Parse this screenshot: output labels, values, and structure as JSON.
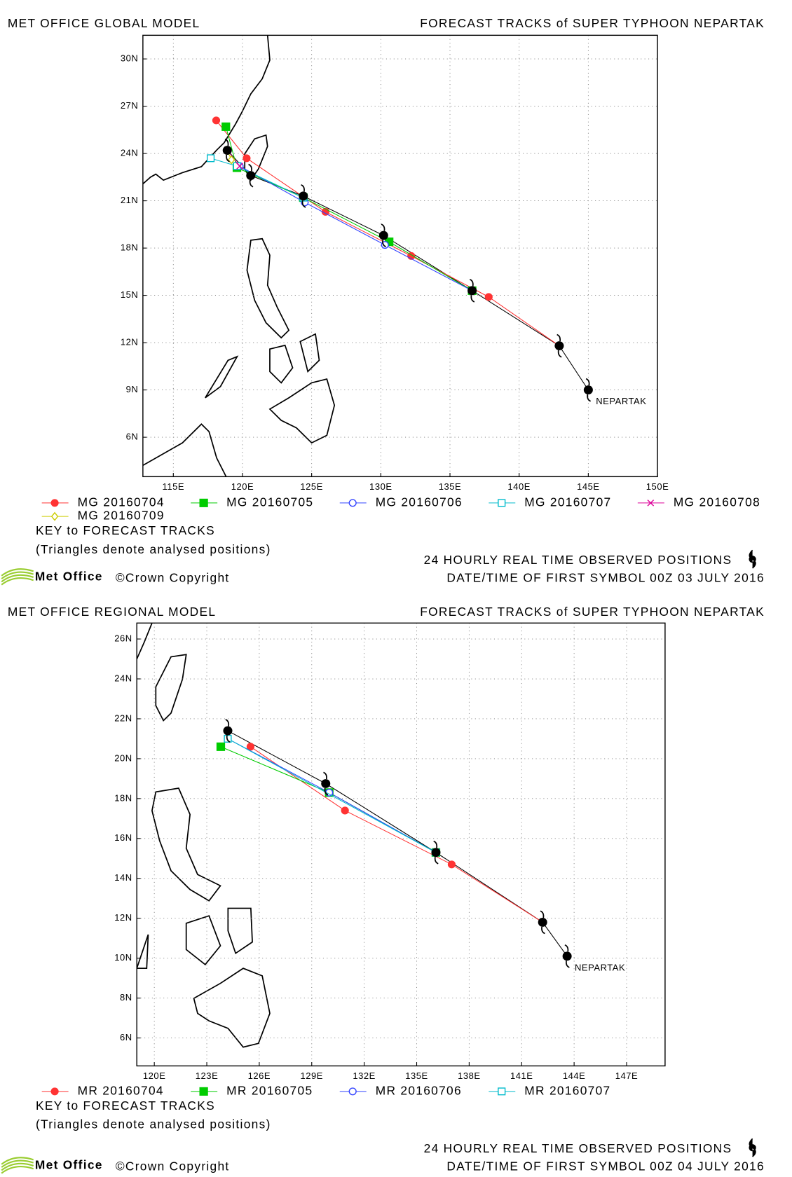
{
  "maps": [
    {
      "header_left": "MET OFFICE GLOBAL MODEL",
      "header_right": "FORECAST TRACKS of SUPER TYPHOON NEPARTAK",
      "storm_label": "NEPARTAK",
      "xlim": [
        112.8,
        150
      ],
      "ylim": [
        3.5,
        31.5
      ],
      "xticks": [
        {
          "value": 115,
          "label": "115E"
        },
        {
          "value": 120,
          "label": "120E"
        },
        {
          "value": 125,
          "label": "125E"
        },
        {
          "value": 130,
          "label": "130E"
        },
        {
          "value": 135,
          "label": "135E"
        },
        {
          "value": 140,
          "label": "140E"
        },
        {
          "value": 145,
          "label": "145E"
        },
        {
          "value": 150,
          "label": "150E"
        }
      ],
      "yticks": [
        {
          "value": 6,
          "label": "6N"
        },
        {
          "value": 9,
          "label": "9N"
        },
        {
          "value": 12,
          "label": "12N"
        },
        {
          "value": 15,
          "label": "15N"
        },
        {
          "value": 18,
          "label": "18N"
        },
        {
          "value": 21,
          "label": "21N"
        },
        {
          "value": 24,
          "label": "24N"
        },
        {
          "value": 27,
          "label": "27N"
        },
        {
          "value": 30,
          "label": "30N"
        }
      ],
      "observed": {
        "lon": [
          145.0,
          142.9,
          136.6,
          130.2,
          124.4,
          120.6,
          118.9
        ],
        "lat": [
          9.0,
          11.8,
          15.3,
          18.8,
          21.3,
          22.6,
          24.2
        ]
      },
      "tracks": [
        {
          "name": "MG 20160704",
          "color": "#ff3333",
          "marker": "circle",
          "lon": [
            118.1,
            120.3,
            126.0,
            132.2,
            137.8,
            142.9
          ],
          "lat": [
            26.1,
            23.7,
            20.3,
            17.5,
            14.9,
            11.8
          ]
        },
        {
          "name": "MG 20160705",
          "color": "#00cc00",
          "marker": "square",
          "lon": [
            118.8,
            119.6,
            124.4,
            130.6,
            136.6
          ],
          "lat": [
            25.7,
            23.1,
            21.2,
            18.4,
            15.3
          ]
        },
        {
          "name": "MG 20160706",
          "color": "#3344ff",
          "marker": "open-circle",
          "lon": [
            119.8,
            124.5,
            130.3,
            136.6
          ],
          "lat": [
            23.2,
            20.9,
            18.2,
            15.3
          ]
        },
        {
          "name": "MG 20160707",
          "color": "#00bbcc",
          "marker": "open-square",
          "lon": [
            117.7,
            119.6,
            124.4
          ],
          "lat": [
            23.7,
            23.2,
            21.2
          ]
        },
        {
          "name": "MG 20160708",
          "color": "#dd0099",
          "marker": "cross",
          "lon": [
            118.9,
            119.8
          ],
          "lat": [
            24.2,
            23.2
          ]
        },
        {
          "name": "MG 20160709",
          "color": "#cccc00",
          "marker": "diamond",
          "lon": [
            118.9,
            119.2
          ],
          "lat": [
            24.2,
            23.6
          ]
        }
      ],
      "key_title": "KEY to FORECAST TRACKS",
      "key_note": "(Triangles denote analysed positions)",
      "observed_note": "24 HOURLY REAL TIME OBSERVED POSITIONS",
      "first_symbol": "DATE/TIME OF FIRST SYMBOL 00Z 03 JULY 2016",
      "logo": "Met Office",
      "copyright": "©Crown Copyright"
    },
    {
      "header_left": "MET OFFICE REGIONAL MODEL",
      "header_right": "FORECAST TRACKS of SUPER TYPHOON NEPARTAK",
      "storm_label": "NEPARTAK",
      "xlim": [
        119.0,
        149.2
      ],
      "ylim": [
        4.6,
        26.8
      ],
      "xticks": [
        {
          "value": 120,
          "label": "120E"
        },
        {
          "value": 123,
          "label": "123E"
        },
        {
          "value": 126,
          "label": "126E"
        },
        {
          "value": 129,
          "label": "129E"
        },
        {
          "value": 132,
          "label": "132E"
        },
        {
          "value": 135,
          "label": "135E"
        },
        {
          "value": 138,
          "label": "138E"
        },
        {
          "value": 141,
          "label": "141E"
        },
        {
          "value": 144,
          "label": "144E"
        },
        {
          "value": 147,
          "label": "147E"
        }
      ],
      "yticks": [
        {
          "value": 6,
          "label": "6N"
        },
        {
          "value": 8,
          "label": "8N"
        },
        {
          "value": 10,
          "label": "10N"
        },
        {
          "value": 12,
          "label": "12N"
        },
        {
          "value": 14,
          "label": "14N"
        },
        {
          "value": 16,
          "label": "16N"
        },
        {
          "value": 18,
          "label": "18N"
        },
        {
          "value": 20,
          "label": "20N"
        },
        {
          "value": 22,
          "label": "22N"
        },
        {
          "value": 24,
          "label": "24N"
        },
        {
          "value": 26,
          "label": "26N"
        }
      ],
      "observed": {
        "lon": [
          143.6,
          142.2,
          136.1,
          129.8,
          124.2
        ],
        "lat": [
          10.1,
          11.8,
          15.3,
          18.75,
          21.4
        ]
      },
      "tracks": [
        {
          "name": "MR 20160704",
          "color": "#ff3333",
          "marker": "circle",
          "lon": [
            125.5,
            130.9,
            137.0,
            142.2
          ],
          "lat": [
            20.6,
            17.4,
            14.7,
            11.8
          ]
        },
        {
          "name": "MR 20160705",
          "color": "#00cc00",
          "marker": "square",
          "lon": [
            123.8,
            130.0,
            136.1
          ],
          "lat": [
            20.6,
            18.3,
            15.3
          ]
        },
        {
          "name": "MR 20160706",
          "color": "#3344ff",
          "marker": "open-circle",
          "lon": [
            124.2,
            130.0,
            136.1
          ],
          "lat": [
            21.0,
            18.3,
            15.3
          ]
        },
        {
          "name": "MR 20160707",
          "color": "#00bbcc",
          "marker": "open-square",
          "lon": [
            124.2,
            136.1
          ],
          "lat": [
            21.0,
            15.3
          ]
        }
      ],
      "key_title": "KEY to FORECAST TRACKS",
      "key_note": "(Triangles denote analysed positions)",
      "observed_note": "24 HOURLY REAL TIME OBSERVED POSITIONS",
      "first_symbol": "DATE/TIME OF FIRST SYMBOL 00Z 04 JULY 2016",
      "logo": "Met Office",
      "copyright": "©Crown Copyright"
    }
  ]
}
